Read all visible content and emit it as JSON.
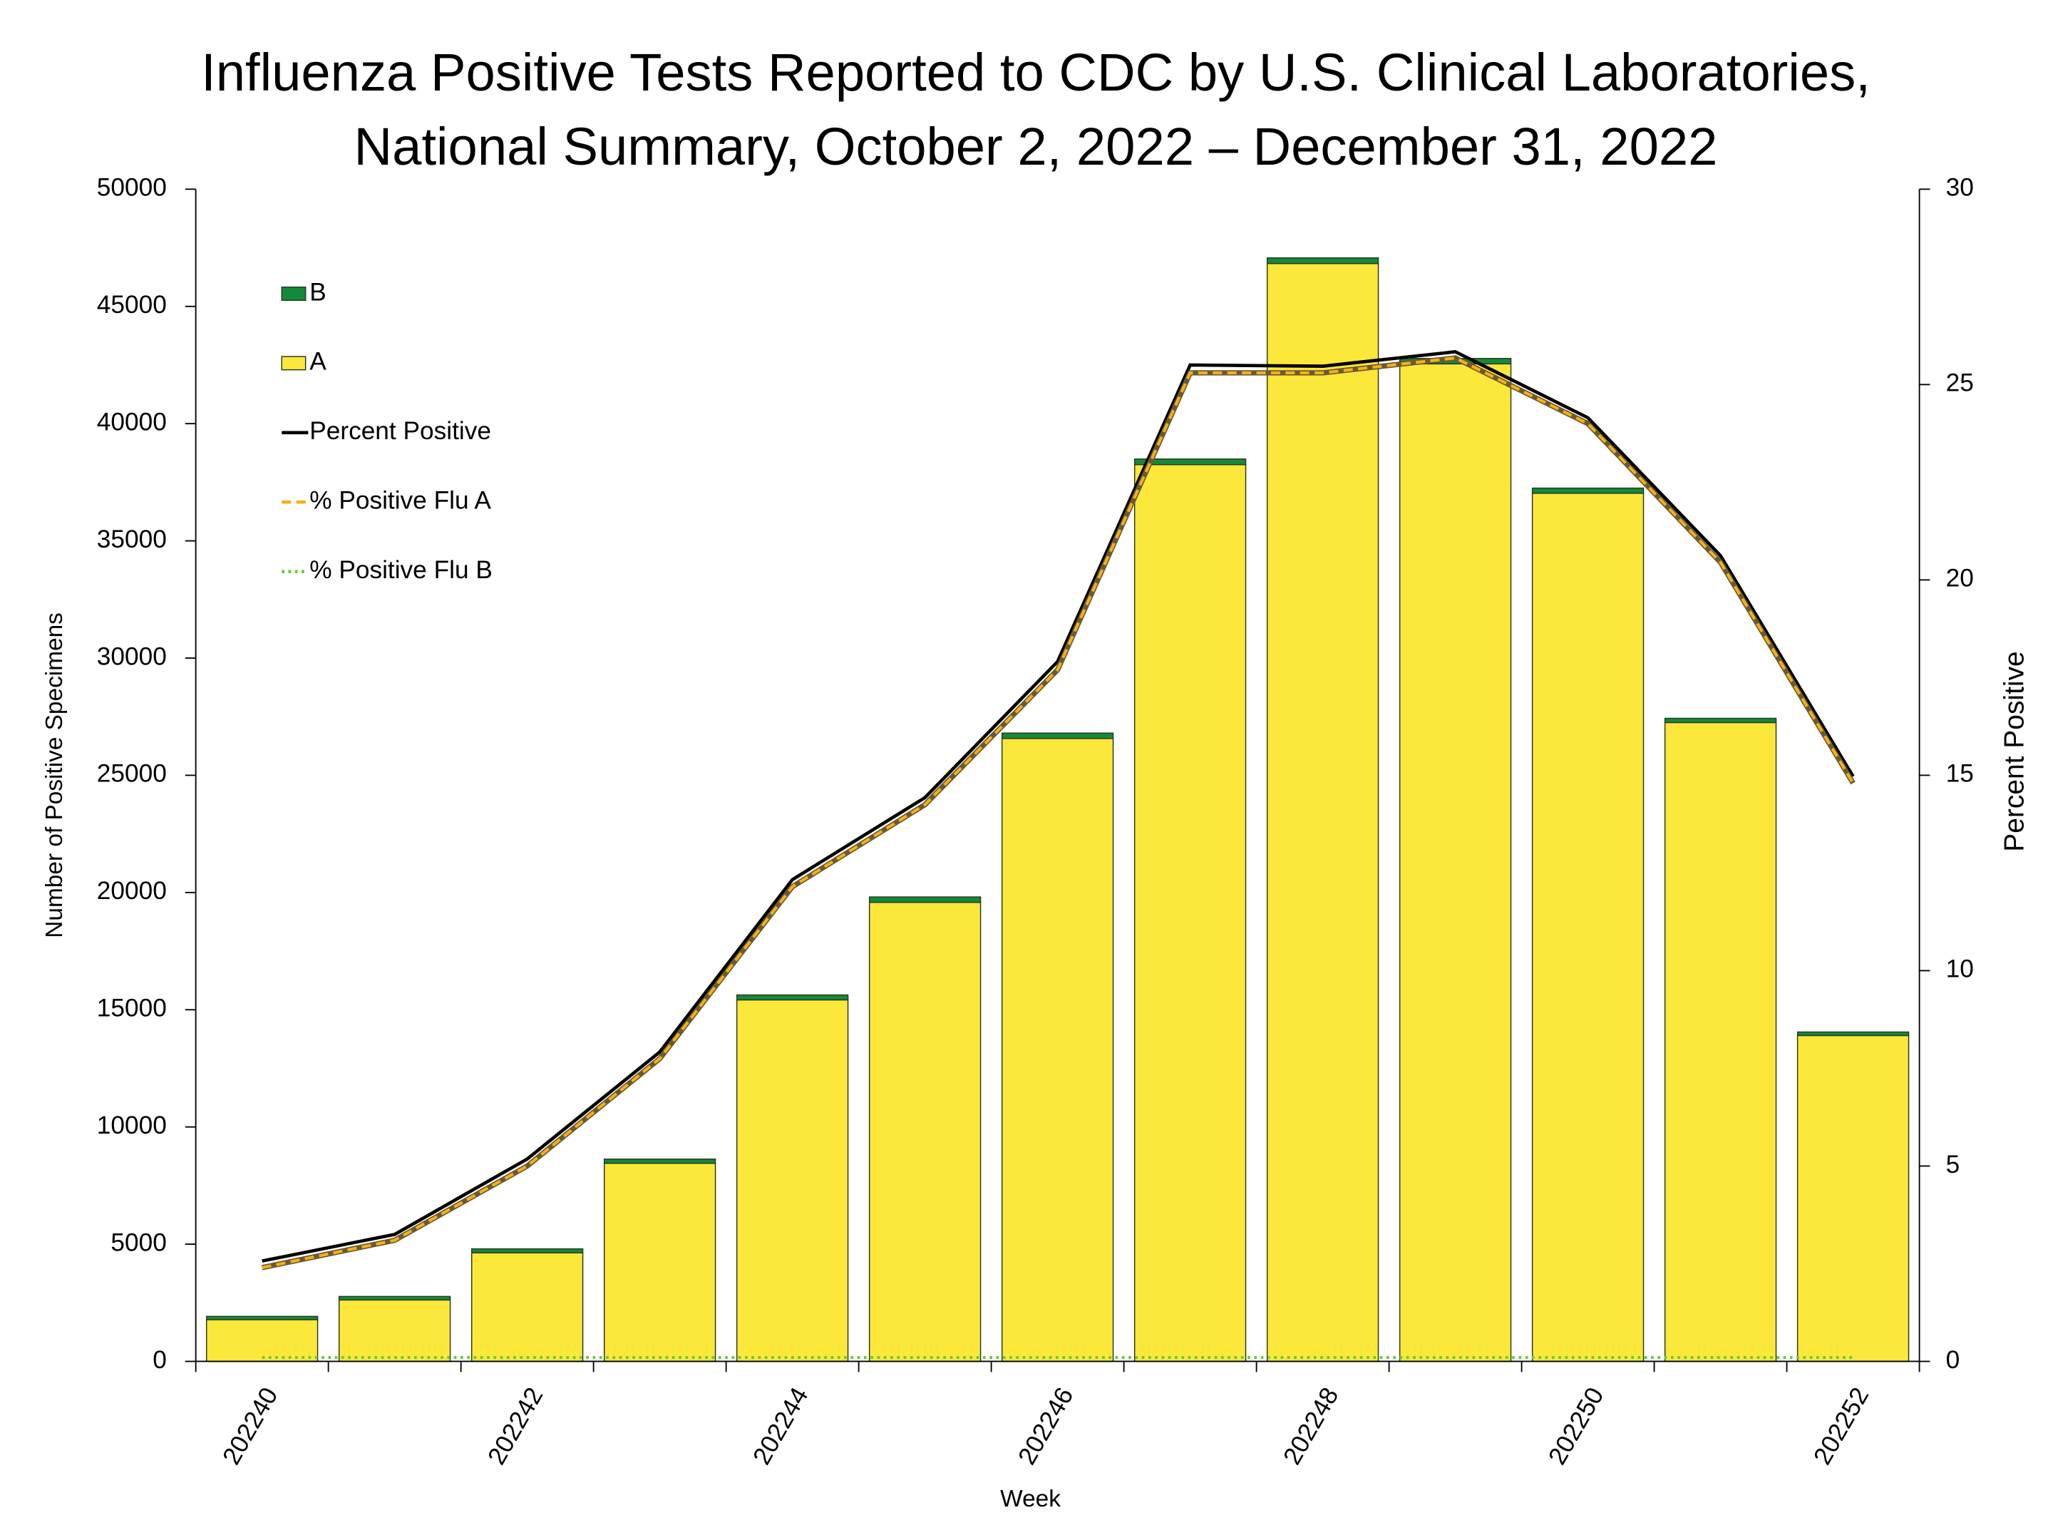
{
  "chart_data": {
    "type": "bar",
    "stacked": true,
    "title": [
      "Influenza Positive Tests Reported to CDC by U.S. Clinical Laboratories,",
      "National Summary, October 2, 2022 – December 31, 2022"
    ],
    "x_label": "Week",
    "y_label": "Number of Positive Specimens",
    "y2_label": "Percent Positive",
    "categories": [
      "202240",
      null,
      "202242",
      null,
      "202244",
      null,
      "202246",
      null,
      "202248",
      null,
      "202250",
      null,
      "202252"
    ],
    "series": [
      {
        "name": "B",
        "type": "bar",
        "color": "#138a3b",
        "values": [
          140,
          150,
          170,
          180,
          210,
          230,
          230,
          240,
          240,
          230,
          220,
          180,
          150
        ]
      },
      {
        "name": "A",
        "type": "bar",
        "color": "#fce83a",
        "values": [
          1780,
          2620,
          4630,
          8450,
          15420,
          19580,
          26570,
          38250,
          46830,
          42550,
          37030,
          27250,
          13900
        ]
      },
      {
        "name": "Percent Positive",
        "type": "line",
        "axis": "y2",
        "color": "#000000",
        "dash": "solid",
        "values": [
          2.57,
          3.25,
          5.18,
          7.92,
          12.33,
          14.43,
          17.91,
          25.5,
          25.47,
          25.84,
          24.15,
          20.62,
          14.97
        ]
      },
      {
        "name": "% Positive Flu A",
        "type": "line",
        "axis": "y2",
        "color": "#f5b01a",
        "dash": "dashed",
        "values": [
          2.4,
          3.1,
          5.0,
          7.75,
          12.15,
          14.25,
          17.7,
          25.3,
          25.3,
          25.68,
          24.0,
          20.45,
          14.8
        ]
      },
      {
        "name": "% Positive Flu B",
        "type": "line",
        "axis": "y2",
        "color": "#66cc33",
        "dash": "dotted",
        "values": [
          0.1,
          0.1,
          0.1,
          0.1,
          0.1,
          0.1,
          0.1,
          0.1,
          0.1,
          0.1,
          0.1,
          0.1,
          0.1
        ]
      }
    ],
    "ylim": [
      0,
      50000
    ],
    "yticks": [
      0,
      5000,
      10000,
      15000,
      20000,
      25000,
      30000,
      35000,
      40000,
      45000,
      50000
    ],
    "y2lim": [
      0,
      30
    ],
    "y2ticks": [
      0,
      5,
      10,
      15,
      20,
      25,
      30
    ],
    "legend": "upper left",
    "grid": false
  }
}
